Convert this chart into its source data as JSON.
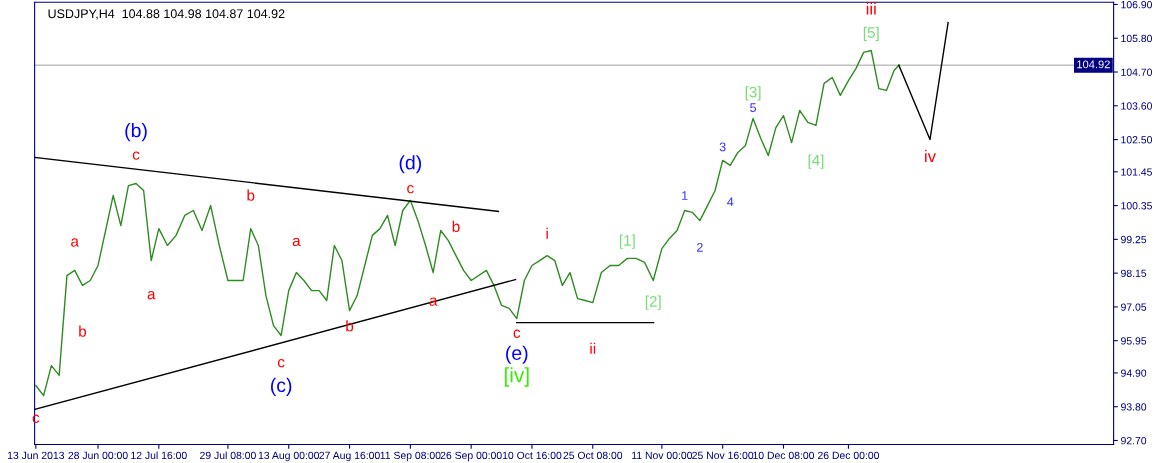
{
  "chart_data": {
    "type": "line",
    "title": "USDJPY,H4  104.88 104.98 104.87 104.92",
    "series": [
      {
        "color": "#2e8b22",
        "x": [
          "2013-06-13T00:00",
          "2013-06-14T21:00",
          "2013-06-16T18:00",
          "2013-06-18T15:00",
          "2013-06-20T12:00",
          "2013-06-22T09:00",
          "2013-06-24T06:00",
          "2013-06-26T03:00",
          "2013-06-28T00:00",
          "2013-07-01T16:00",
          "2013-07-03T12:00",
          "2013-07-05T08:00",
          "2013-07-07T04:00",
          "2013-07-09T00:00",
          "2013-07-10T20:00",
          "2013-07-12T16:00",
          "2013-07-14T18:00",
          "2013-07-16T20:00",
          "2013-07-18T22:00",
          "2013-07-21T00:00",
          "2013-07-23T02:00",
          "2013-07-25T04:00",
          "2013-07-27T06:00",
          "2013-07-29T08:00",
          "2013-07-31T04:00",
          "2013-08-02T00:00",
          "2013-08-03T20:00",
          "2013-08-05T16:00",
          "2013-08-07T12:00",
          "2013-08-09T08:00",
          "2013-08-11T04:00",
          "2013-08-13T00:00",
          "2013-08-14T20:00",
          "2013-08-16T16:00",
          "2013-08-18T12:00",
          "2013-08-20T08:00",
          "2013-08-22T04:00",
          "2013-08-24T00:00",
          "2013-08-25T20:00",
          "2013-08-27T16:00",
          "2013-08-29T12:00",
          "2013-08-31T08:00",
          "2013-09-02T04:00",
          "2013-09-04T00:00",
          "2013-09-05T20:00",
          "2013-09-07T16:00",
          "2013-09-09T12:00",
          "2013-09-11T08:00",
          "2013-09-13T04:00",
          "2013-09-15T00:00",
          "2013-09-16T20:00",
          "2013-09-18T16:00",
          "2013-09-20T12:00",
          "2013-09-22T08:00",
          "2013-09-24T04:00",
          "2013-09-26T00:00",
          "2013-09-29T16:00",
          "2013-10-01T12:00",
          "2013-10-03T08:00",
          "2013-10-05T04:00",
          "2013-10-07T00:00",
          "2013-10-08T20:00",
          "2013-10-10T16:00",
          "2013-10-12T12:00",
          "2013-10-14T08:00",
          "2013-10-16T04:00",
          "2013-10-18T00:00",
          "2013-10-19T20:00",
          "2013-10-21T16:00",
          "2013-10-23T12:00",
          "2013-10-25T08:00",
          "2013-10-27T10:00",
          "2013-10-29T12:00",
          "2013-10-31T14:00",
          "2013-11-02T16:00",
          "2013-11-04T18:00",
          "2013-11-06T20:00",
          "2013-11-08T22:00",
          "2013-11-11T00:00",
          "2013-11-12T20:00",
          "2013-11-14T16:00",
          "2013-11-16T12:00",
          "2013-11-18T08:00",
          "2013-11-20T04:00",
          "2013-11-22T00:00",
          "2013-11-23T20:00",
          "2013-11-25T16:00",
          "2013-11-27T12:00",
          "2013-11-29T08:00",
          "2013-12-01T04:00",
          "2013-12-03T00:00",
          "2013-12-04T20:00",
          "2013-12-06T16:00",
          "2013-12-08T12:00",
          "2013-12-10T08:00",
          "2013-12-12T07:00",
          "2013-12-14T06:00",
          "2013-12-16T05:00",
          "2013-12-18T04:00",
          "2013-12-20T03:00",
          "2013-12-22T02:00",
          "2013-12-24T01:00",
          "2013-12-26T00:00",
          "2013-12-27T20:00",
          "2013-12-29T16:00",
          "2013-12-31T12:00",
          "2014-01-02T08:00",
          "2014-01-04T04:00",
          "2014-01-06T00:00",
          "2014-01-07T04:00"
        ],
        "values": [
          94.49,
          94.16,
          95.14,
          94.82,
          98.07,
          98.24,
          97.75,
          97.91,
          98.4,
          100.68,
          99.7,
          101.0,
          101.07,
          100.84,
          98.56,
          99.6,
          99.05,
          99.38,
          100.03,
          100.19,
          99.54,
          100.35,
          99.05,
          97.91,
          97.91,
          97.91,
          99.6,
          99.05,
          97.42,
          96.44,
          96.12,
          97.58,
          98.17,
          97.91,
          97.58,
          97.58,
          97.26,
          99.05,
          98.56,
          96.93,
          97.42,
          98.4,
          99.38,
          99.6,
          100.03,
          99.05,
          100.19,
          100.52,
          99.86,
          99.05,
          98.17,
          99.54,
          99.21,
          98.72,
          98.24,
          97.91,
          98.24,
          97.75,
          97.1,
          97.0,
          96.67,
          97.91,
          98.4,
          98.56,
          98.72,
          98.56,
          97.75,
          98.17,
          97.32,
          97.26,
          97.19,
          98.17,
          98.4,
          98.4,
          98.63,
          98.63,
          98.5,
          97.91,
          98.95,
          99.28,
          99.54,
          100.19,
          100.13,
          99.86,
          100.35,
          100.84,
          101.82,
          101.66,
          102.08,
          102.31,
          103.19,
          102.54,
          101.98,
          102.89,
          103.28,
          102.4,
          103.45,
          103.06,
          102.96,
          104.33,
          104.52,
          103.94,
          104.42,
          104.82,
          105.34,
          105.4,
          104.16,
          104.1,
          104.75,
          104.92
        ]
      },
      {
        "type": "line",
        "color": "#000000",
        "x": [
          "2013-06-12T17:00",
          "2013-10-02T14:00"
        ],
        "values": [
          101.92,
          100.16
        ]
      },
      {
        "type": "line",
        "color": "#000000",
        "x": [
          "2013-06-12T17:00",
          "2013-10-06T17:00"
        ],
        "values": [
          93.71,
          97.94
        ]
      },
      {
        "type": "line",
        "color": "#000000",
        "x": [
          "2013-10-07T00:00",
          "2013-11-09T00:00"
        ],
        "values": [
          96.54,
          96.54
        ]
      },
      {
        "type": "line",
        "color": "#000000",
        "x": [
          "2014-01-07T04:00",
          "2014-01-14T16:00",
          "2014-01-19T01:00"
        ],
        "values": [
          104.92,
          102.5,
          106.31
        ]
      }
    ],
    "annotations": [
      {
        "text": "c",
        "x": "2013-06-13T00:00",
        "y": 94.49
      },
      {
        "text": "a",
        "x": "2013-06-22T09:00",
        "y": 98.24
      },
      {
        "text": "b",
        "x": "2013-06-24T06:00",
        "y": 97.75
      },
      {
        "text": "(b)",
        "x": "2013-07-07T04:00",
        "y": 101.07
      },
      {
        "text": "c",
        "x": "2013-07-07T04:00",
        "y": 101.07
      },
      {
        "text": "a",
        "x": "2013-07-10T20:00",
        "y": 98.56
      },
      {
        "text": "b",
        "x": "2013-08-03T20:00",
        "y": 99.6
      },
      {
        "text": "c",
        "x": "2013-08-11T04:00",
        "y": 96.12
      },
      {
        "text": "(c)",
        "x": "2013-08-11T04:00",
        "y": 96.12
      },
      {
        "text": "a",
        "x": "2013-08-14T20:00",
        "y": 98.17
      },
      {
        "text": "b",
        "x": "2013-08-27T16:00",
        "y": 96.93
      },
      {
        "text": "(d)",
        "x": "2013-09-11T08:00",
        "y": 100.52
      },
      {
        "text": "c",
        "x": "2013-09-11T08:00",
        "y": 100.52
      },
      {
        "text": "a",
        "x": "2013-09-16T20:00",
        "y": 98.17
      },
      {
        "text": "b",
        "x": "2013-09-22T08:00",
        "y": 98.72
      },
      {
        "text": "c",
        "x": "2013-10-07T00:00",
        "y": 96.67
      },
      {
        "text": "(e)",
        "x": "2013-10-07T00:00",
        "y": 96.67
      },
      {
        "text": "[iv]",
        "x": "2013-10-07T00:00",
        "y": 96.67
      },
      {
        "text": "i",
        "x": "2013-10-14T08:00",
        "y": 98.72
      },
      {
        "text": "ii",
        "x": "2013-10-25T08:00",
        "y": 97.19
      },
      {
        "text": "[1]",
        "x": "2013-11-02T16:00",
        "y": 98.63
      },
      {
        "text": "[2]",
        "x": "2013-11-08T22:00",
        "y": 97.91
      },
      {
        "text": "1",
        "x": "2013-11-16T12:00",
        "y": 100.19
      },
      {
        "text": "2",
        "x": "2013-11-20T04:00",
        "y": 99.86
      },
      {
        "text": "3",
        "x": "2013-11-25T16:00",
        "y": 101.82
      },
      {
        "text": "4",
        "x": "2013-11-27T12:00",
        "y": 101.66
      },
      {
        "text": "5",
        "x": "2013-12-03T00:00",
        "y": 103.19
      },
      {
        "text": "[3]",
        "x": "2013-12-03T00:00",
        "y": 103.19
      },
      {
        "text": "[4]",
        "x": "2013-12-18T04:00",
        "y": 102.96
      },
      {
        "text": "[5]",
        "x": "2013-12-31T12:00",
        "y": 105.4
      },
      {
        "text": "iii",
        "x": "2013-12-31T12:00",
        "y": 105.4
      },
      {
        "text": "iv",
        "x": "2014-01-14T16:00",
        "y": 102.5
      }
    ],
    "ref_lines": [
      {
        "axis": "y",
        "value": 104.92,
        "label": "104.92",
        "color": "#c0c0c0"
      }
    ],
    "xlim": [
      "2013-06-12T17:00",
      "2014-02-27T23:00"
    ],
    "xticks": [
      {
        "value": "2013-06-13",
        "label": "13 Jun 2013"
      },
      {
        "value": "2013-06-28T00:00",
        "label": "28 Jun 00:00"
      },
      {
        "value": "2013-07-12T16:00",
        "label": "12 Jul 16:00"
      },
      {
        "value": "2013-07-29T08:00",
        "label": "29 Jul 08:00"
      },
      {
        "value": "2013-08-13T00:00",
        "label": "13 Aug 00:00"
      },
      {
        "value": "2013-08-27T16:00",
        "label": "27 Aug 16:00"
      },
      {
        "value": "2013-09-11T08:00",
        "label": "11 Sep 08:00"
      },
      {
        "value": "2013-09-26T00:00",
        "label": "26 Sep 00:00"
      },
      {
        "value": "2013-10-10T16:00",
        "label": "10 Oct 16:00"
      },
      {
        "value": "2013-10-25T08:00",
        "label": "25 Oct 08:00"
      },
      {
        "value": "2013-11-11T00:00",
        "label": "11 Nov 00:00"
      },
      {
        "value": "2013-11-25T16:00",
        "label": "25 Nov 16:00"
      },
      {
        "value": "2013-12-10T08:00",
        "label": "10 Dec 08:00"
      },
      {
        "value": "2013-12-26T00:00",
        "label": "26 Dec 00:00"
      }
    ],
    "ylim": [
      92.57,
      106.97
    ],
    "yticks": [
      {
        "value": 92.7,
        "label": "92.70"
      },
      {
        "value": 93.8,
        "label": "93.80"
      },
      {
        "value": 94.9,
        "label": "94.90"
      },
      {
        "value": 95.95,
        "label": "95.95"
      },
      {
        "value": 97.05,
        "label": "97.05"
      },
      {
        "value": 98.15,
        "label": "98.15"
      },
      {
        "value": 99.25,
        "label": "99.25"
      },
      {
        "value": 100.35,
        "label": "100.35"
      },
      {
        "value": 101.45,
        "label": "101.45"
      },
      {
        "value": 102.5,
        "label": "102.50"
      },
      {
        "value": 103.6,
        "label": "103.60"
      },
      {
        "value": 104.7,
        "label": "104.70"
      },
      {
        "value": 105.8,
        "label": "105.80"
      },
      {
        "value": 106.9,
        "label": "106.90"
      }
    ],
    "marker": "none",
    "line_style": "solid"
  }
}
